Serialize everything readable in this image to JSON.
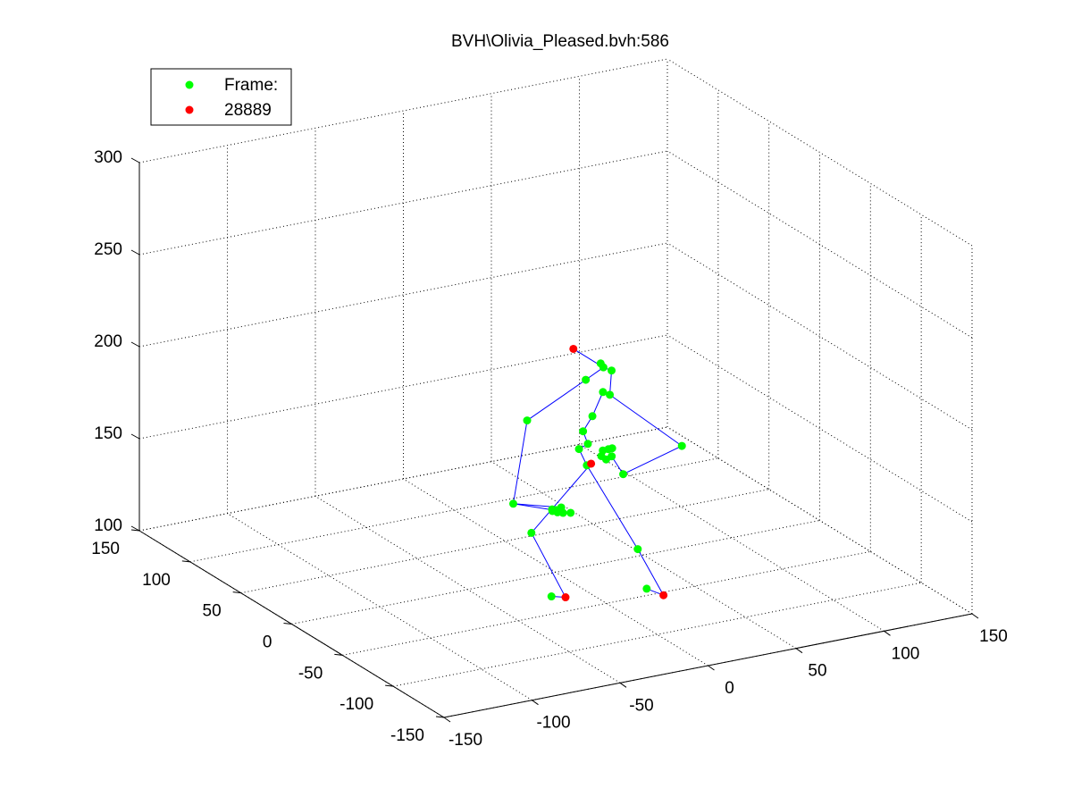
{
  "chart_data": {
    "type": "scatter",
    "title": "BVH\\Olivia_Pleased.bvh:586",
    "xlabel": "",
    "ylabel": "",
    "zlabel": "",
    "xlim": [
      -150,
      150
    ],
    "ylim": [
      -150,
      150
    ],
    "zlim": [
      100,
      300
    ],
    "x_ticks": [
      -150,
      -100,
      -50,
      0,
      50,
      100,
      150
    ],
    "y_ticks": [
      -150,
      -100,
      -50,
      0,
      50,
      100,
      150
    ],
    "z_ticks": [
      100,
      150,
      200,
      250,
      300
    ],
    "x_tick_labels": [
      "-150",
      "-100",
      "-50",
      "0",
      "50",
      "100",
      "150"
    ],
    "y_tick_labels": [
      "-150",
      "-100",
      "-50",
      "0",
      "50",
      "100",
      "150"
    ],
    "z_tick_labels": [
      "100",
      "150",
      "200",
      "250",
      "300"
    ],
    "grid": true,
    "legend_position": "top-left",
    "legend": [
      {
        "label": "Frame:",
        "color": "#00ff00"
      },
      {
        "label": "28889",
        "color": "#ff0000"
      }
    ],
    "bone_color": "#0000ff",
    "series": [
      {
        "name": "Frame:",
        "color": "#00ff00",
        "points": [
          {
            "x": 29,
            "y": 6,
            "z": 206
          },
          {
            "x": 30,
            "y": 5,
            "z": 204
          },
          {
            "x": 30,
            "y": -3,
            "z": 205
          },
          {
            "x": 24,
            "y": 12,
            "z": 196
          },
          {
            "x": 28,
            "y": 2,
            "z": 192
          },
          {
            "x": 29,
            "y": -3,
            "z": 192
          },
          {
            "x": -22,
            "y": -10,
            "z": 190
          },
          {
            "x": 22,
            "y": 2,
            "z": 180
          },
          {
            "x": 19,
            "y": 6,
            "z": 171
          },
          {
            "x": 20,
            "y": 3,
            "z": 165
          },
          {
            "x": 19,
            "y": 10,
            "z": 160
          },
          {
            "x": 20,
            "y": 4,
            "z": 153
          },
          {
            "x": -27,
            "y": -5,
            "z": 144
          },
          {
            "x": 59,
            "y": -22,
            "z": 165
          },
          {
            "x": -9,
            "y": -21,
            "z": 144
          },
          {
            "x": 32,
            "y": -11,
            "z": 151
          },
          {
            "x": 39,
            "y": 12,
            "z": 156
          },
          {
            "x": 38,
            "y": 14,
            "z": 155
          },
          {
            "x": 36,
            "y": 16,
            "z": 154
          },
          {
            "x": 37,
            "y": 9,
            "z": 153
          },
          {
            "x": 34,
            "y": 14,
            "z": 152
          },
          {
            "x": 35,
            "y": 11,
            "z": 151
          },
          {
            "x": -14,
            "y": -26,
            "z": 144
          },
          {
            "x": -12,
            "y": -28,
            "z": 144
          },
          {
            "x": -10,
            "y": -32,
            "z": 145
          },
          {
            "x": -13,
            "y": -23,
            "z": 144
          },
          {
            "x": -14,
            "y": -21,
            "z": 143
          },
          {
            "x": -13,
            "y": -19,
            "z": 143
          },
          {
            "x": -19,
            "y": -9,
            "z": 128
          },
          {
            "x": 27,
            "y": -34,
            "z": 119
          },
          {
            "x": -33,
            "y": -53,
            "z": 111
          },
          {
            "x": -6,
            "y": -100,
            "z": 126
          }
        ]
      },
      {
        "name": "28889",
        "color": "#ff0000",
        "points": [
          {
            "x": 21,
            "y": 19,
            "z": 211
          },
          {
            "x": 23,
            "y": 5,
            "z": 153
          },
          {
            "x": -25,
            "y": -53,
            "z": 109
          },
          {
            "x": 7,
            "y": -94,
            "z": 118
          }
        ]
      }
    ]
  }
}
